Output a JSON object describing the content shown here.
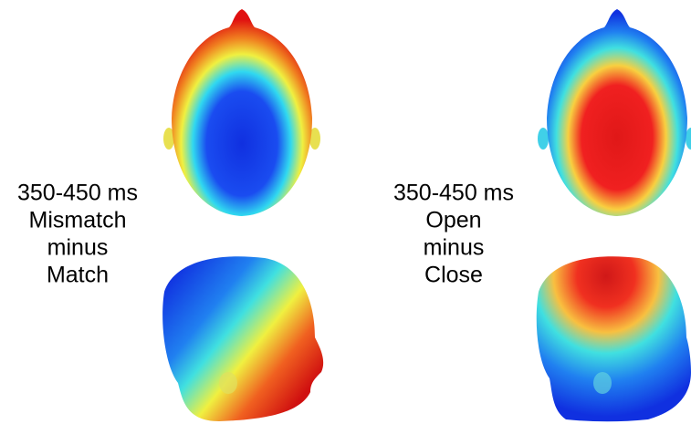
{
  "panels": [
    {
      "lines": [
        "350-450 ms",
        "Mismatch",
        "minus",
        "Match"
      ]
    },
    {
      "lines": [
        "350-450 ms",
        "Open",
        "minus",
        "Close"
      ]
    }
  ]
}
